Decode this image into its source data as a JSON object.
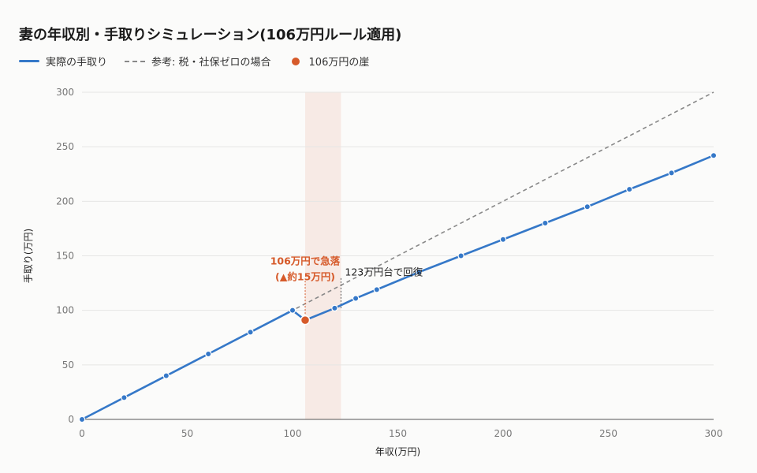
{
  "chart_data": {
    "type": "line",
    "title": "妻の年収別・手取りシミュレーション(106万円ルール適用)",
    "xlabel": "年収(万円)",
    "ylabel": "手取り(万円)",
    "xlim": [
      0,
      300
    ],
    "ylim": [
      0,
      300
    ],
    "x_ticks": [
      "0",
      "50",
      "100",
      "150",
      "200",
      "250",
      "300"
    ],
    "y_ticks": [
      "0",
      "50",
      "100",
      "150",
      "200",
      "250",
      "300"
    ],
    "grid": true,
    "legend_position": "top-left",
    "shaded_band": {
      "x_from": 106,
      "x_to": 123
    },
    "series": [
      {
        "name": "実際の手取り",
        "style": "solid",
        "color": "#3578c8",
        "x": [
          0,
          20,
          40,
          60,
          80,
          100,
          106,
          120,
          130,
          140,
          160,
          180,
          200,
          220,
          240,
          260,
          280,
          300
        ],
        "y": [
          0,
          20,
          40,
          60,
          80,
          100,
          91,
          102,
          111,
          119,
          135,
          150,
          165,
          180,
          195,
          211,
          226,
          242
        ]
      },
      {
        "name": "参考: 税・社保ゼロの場合",
        "style": "dashed",
        "color": "#888888",
        "x": [
          0,
          300
        ],
        "y": [
          0,
          300
        ]
      },
      {
        "name": "106万円の崖",
        "style": "marker",
        "color": "#d65a2a",
        "x": [
          106
        ],
        "y": [
          91
        ]
      }
    ],
    "annotations": [
      {
        "text_lines": [
          "106万円で急落",
          "(▲約15万円)"
        ],
        "x": 106,
        "y_from": 91,
        "y_to": 106,
        "color": "#d65a2a"
      },
      {
        "text": "123万円台で回復",
        "x": 123,
        "y_from": 102,
        "y_to": 135,
        "color": "#222222"
      }
    ]
  }
}
